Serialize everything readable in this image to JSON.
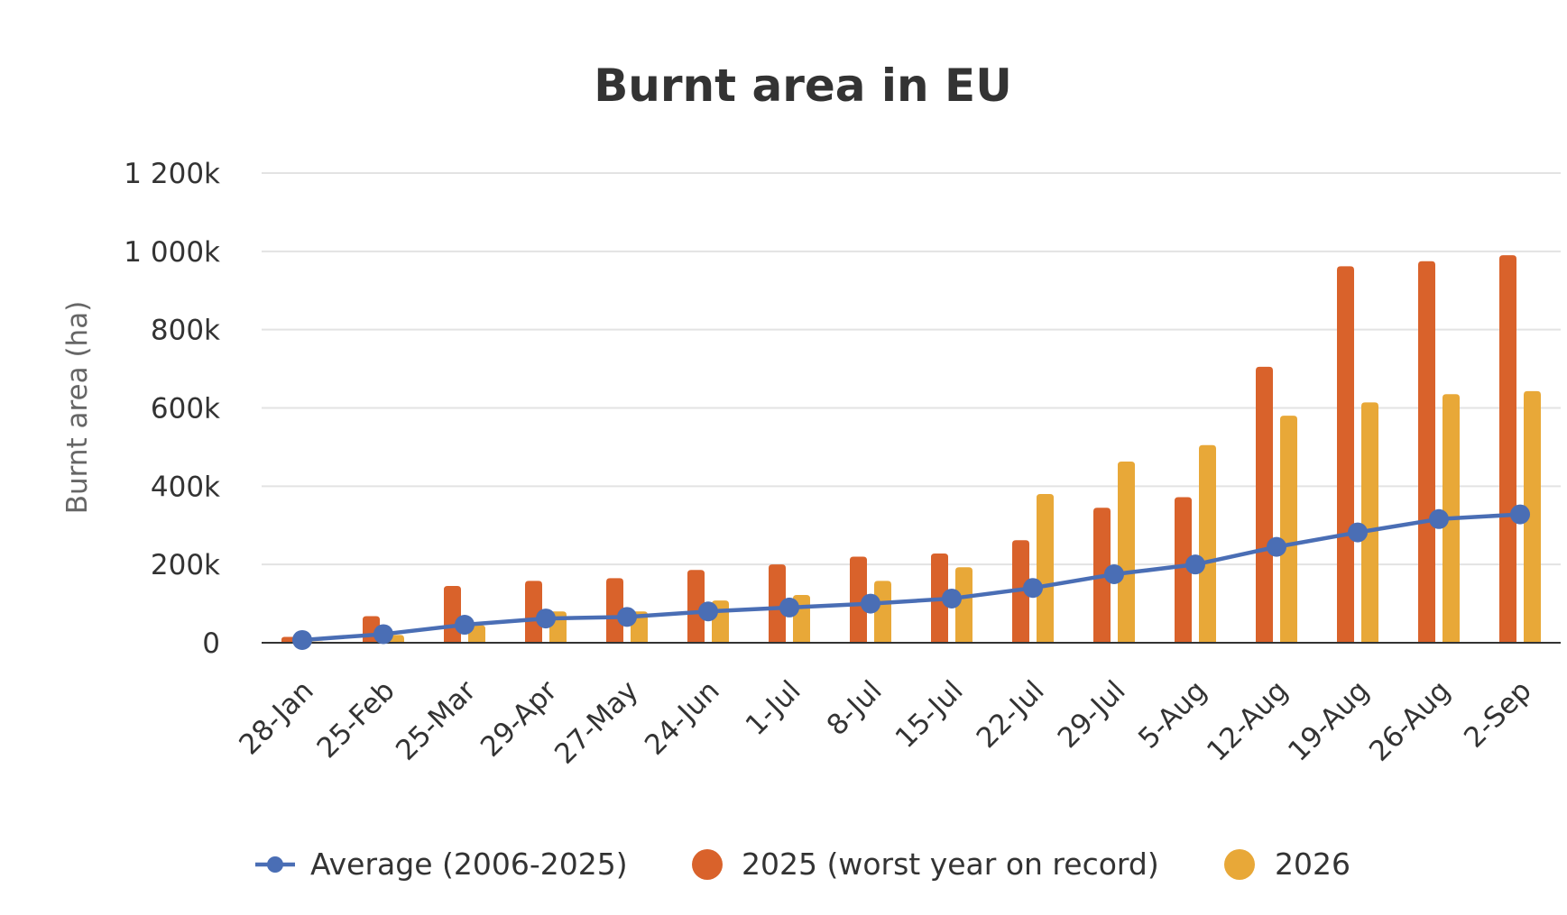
{
  "chart_data": {
    "type": "bar",
    "title": "Burnt area in EU",
    "xlabel": "",
    "ylabel": "Burnt area (ha)",
    "ylim": [
      0,
      1200000
    ],
    "yticks": [
      0,
      200000,
      400000,
      600000,
      800000,
      1000000,
      1200000
    ],
    "ytick_labels": [
      "0",
      "200k",
      "400k",
      "600k",
      "800k",
      "1 000k",
      "1 200k"
    ],
    "grid": true,
    "legend_position": "bottom",
    "categories": [
      "28-Jan",
      "25-Feb",
      "25-Mar",
      "29-Apr",
      "27-May",
      "24-Jun",
      "1-Jul",
      "8-Jul",
      "15-Jul",
      "22-Jul",
      "29-Jul",
      "5-Aug",
      "12-Aug",
      "19-Aug",
      "26-Aug",
      "2-Sep"
    ],
    "series": [
      {
        "name": "Average (2006-2025)",
        "type": "line",
        "color": "#4a6eb5",
        "values": [
          7000,
          22000,
          46000,
          62000,
          66000,
          80000,
          90000,
          100000,
          113000,
          140000,
          175000,
          200000,
          245000,
          282000,
          316000,
          328000
        ]
      },
      {
        "name": "2025 (worst year on record)",
        "type": "bar",
        "color": "#d9622b",
        "values": [
          15000,
          68000,
          145000,
          158000,
          165000,
          186000,
          200000,
          220000,
          228000,
          262000,
          345000,
          372000,
          705000,
          962000,
          975000,
          990000
        ]
      },
      {
        "name": "2026",
        "type": "bar",
        "color": "#e8a838",
        "values": [
          3000,
          20000,
          45000,
          80000,
          80000,
          108000,
          122000,
          158000,
          193000,
          380000,
          463000,
          505000,
          580000,
          614000,
          635000,
          643000
        ]
      }
    ]
  }
}
